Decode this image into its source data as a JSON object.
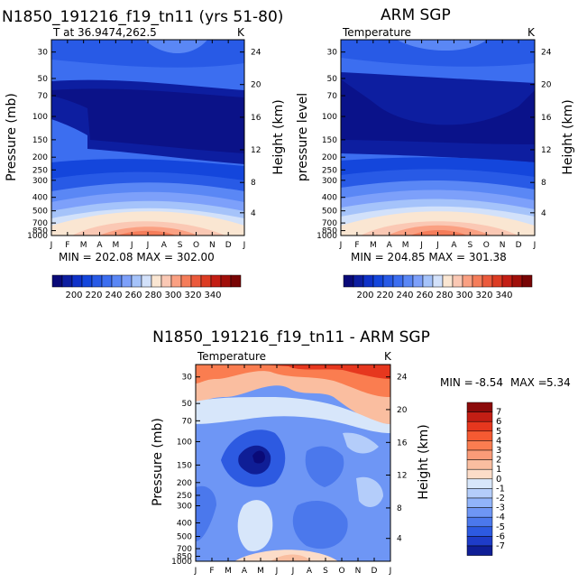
{
  "chart_data": [
    {
      "type": "contour",
      "id": "model",
      "title": "N1850_191216_f19_tn11 (yrs 51-80)",
      "subtitle": "T at 36.9474,262.5",
      "units": "K",
      "ylabel": "Pressure (mb)",
      "ylabel_right": "Height (km)",
      "x_ticks": [
        "J",
        "F",
        "M",
        "A",
        "M",
        "J",
        "J",
        "A",
        "S",
        "O",
        "N",
        "D",
        "J"
      ],
      "y_ticks": [
        "30",
        "50",
        "70",
        "100",
        "150",
        "200",
        "250",
        "300",
        "400",
        "500",
        "700",
        "850",
        "1000"
      ],
      "y_right_ticks": [
        "24",
        "20",
        "16",
        "12",
        "8",
        "4"
      ],
      "min": "202.08",
      "max": "302.00",
      "stats_text": "MIN = 202.08  MAX = 302.00"
    },
    {
      "type": "contour",
      "id": "obs",
      "title": "ARM SGP",
      "subtitle": "Temperature",
      "units": "K",
      "ylabel": "pressure level",
      "ylabel_right": "Height (km)",
      "x_ticks": [
        "J",
        "F",
        "M",
        "A",
        "M",
        "J",
        "J",
        "A",
        "S",
        "O",
        "N",
        "D",
        "J"
      ],
      "y_ticks": [
        "30",
        "50",
        "70",
        "100",
        "150",
        "200",
        "250",
        "300",
        "400",
        "500",
        "700",
        "850",
        "1000"
      ],
      "y_right_ticks": [
        "24",
        "20",
        "16",
        "12",
        "8",
        "4"
      ],
      "min": "204.85",
      "max": "301.38",
      "stats_text": "MIN = 204.85  MAX = 301.38"
    },
    {
      "type": "contour",
      "id": "diff",
      "title": "N1850_191216_f19_tn11 - ARM SGP",
      "subtitle": "Temperature",
      "units": "K",
      "ylabel": "Pressure (mb)",
      "ylabel_right": "Height (km)",
      "x_ticks": [
        "J",
        "F",
        "M",
        "A",
        "M",
        "J",
        "J",
        "A",
        "S",
        "O",
        "N",
        "D",
        "J"
      ],
      "y_ticks": [
        "30",
        "50",
        "70",
        "100",
        "150",
        "200",
        "250",
        "300",
        "400",
        "500",
        "700",
        "850",
        "1000"
      ],
      "y_right_ticks": [
        "24",
        "20",
        "16",
        "12",
        "8",
        "4"
      ],
      "min_label": "MIN =",
      "min": "-8.54",
      "max_label": "MAX =",
      "max": "5.34"
    }
  ],
  "colorbar_abs": {
    "labels": [
      "200",
      "220",
      "240",
      "260",
      "280",
      "300",
      "320",
      "340"
    ],
    "colors": [
      "#0a0a78",
      "#0d1ea0",
      "#0f32c8",
      "#1446dc",
      "#285ae6",
      "#3c6ef0",
      "#5a87f5",
      "#7da0fa",
      "#a5c3fa",
      "#d2e1fa",
      "#fae6d2",
      "#fac8b4",
      "#faa082",
      "#f57d5a",
      "#eb5a3c",
      "#dc3c23",
      "#c31e14",
      "#a00f0a",
      "#780505"
    ]
  },
  "colorbar_diff": {
    "labels": [
      "7",
      "6",
      "5",
      "4",
      "3",
      "2",
      "1",
      "0",
      "-1",
      "-2",
      "-3",
      "-4",
      "-5",
      "-6",
      "-7"
    ],
    "colors": [
      "#8c0a0a",
      "#c31e14",
      "#e6371e",
      "#f55a32",
      "#fa7d50",
      "#fa9b78",
      "#fabea0",
      "#fcdcc8",
      "#d7e6fa",
      "#b4cdfa",
      "#91b4fa",
      "#6e96f5",
      "#4b78ec",
      "#2d5ae1",
      "#1e3cc8",
      "#0f1e96"
    ]
  }
}
